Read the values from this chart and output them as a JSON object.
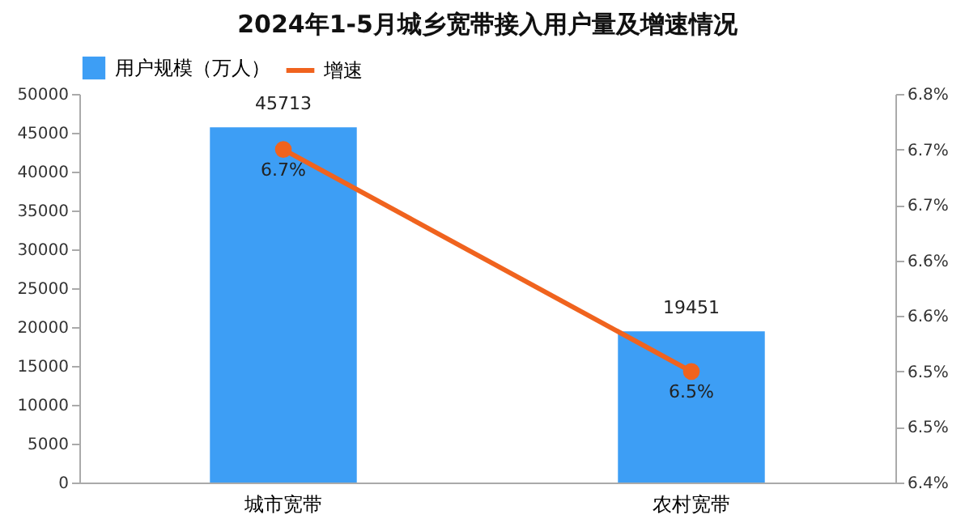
{
  "chart_data": {
    "type": "bar",
    "title": "2024年1-5月城乡宽带接入用户量及增速情况",
    "categories": [
      "城市宽带",
      "农村宽带"
    ],
    "series": [
      {
        "name": "用户规模（万人）",
        "color": "#3d9ef5",
        "values": [
          45713,
          19451
        ],
        "value_labels": [
          "45713",
          "19451"
        ]
      },
      {
        "name": "增速",
        "type": "line",
        "axis": "y2",
        "color": "#f0631e",
        "values": [
          6.7,
          6.5
        ],
        "value_labels": [
          "6.7%",
          "6.5%"
        ]
      }
    ],
    "ylim": [
      0,
      50000
    ],
    "yticks": [
      0,
      5000,
      10000,
      15000,
      20000,
      25000,
      30000,
      35000,
      40000,
      45000,
      50000
    ],
    "y2lim": [
      6.4,
      6.75
    ],
    "y2ticks": [
      {
        "value": 6.4,
        "label": "6.4%"
      },
      {
        "value": 6.45,
        "label": "6.5%"
      },
      {
        "value": 6.5,
        "label": "6.5%"
      },
      {
        "value": 6.55,
        "label": "6.6%"
      },
      {
        "value": 6.6,
        "label": "6.6%"
      },
      {
        "value": 6.65,
        "label": "6.7%"
      },
      {
        "value": 6.7,
        "label": "6.7%"
      },
      {
        "value": 6.75,
        "label": "6.8%"
      }
    ],
    "legend": "top",
    "marker": "circle",
    "line_style": "solid",
    "grid": false
  }
}
